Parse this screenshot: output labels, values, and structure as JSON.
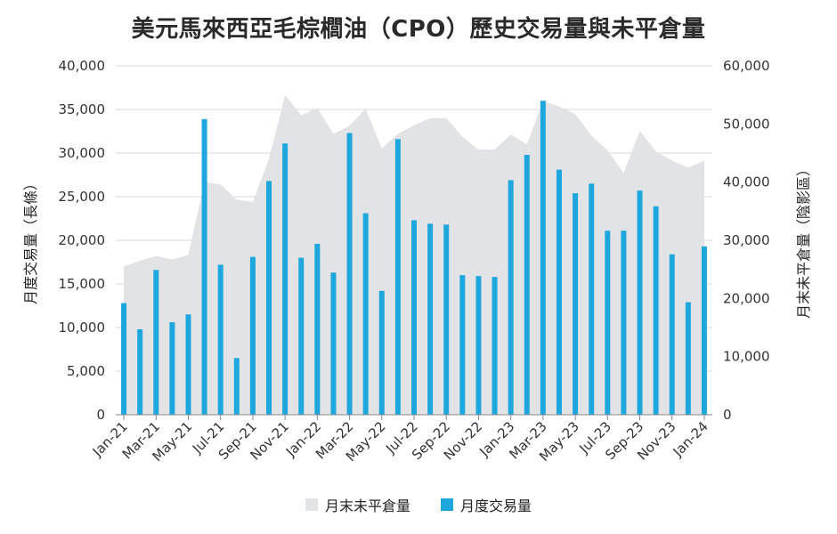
{
  "title": "美元馬來西亞毛棕櫚油（CPO）歷史交易量與未平倉量",
  "chart_data": {
    "type": "bar",
    "title": "美元馬來西亞毛棕櫚油（CPO）歷史交易量與未平倉量",
    "y_left_label": "月度交易量（長條）",
    "y_right_label": "月末未平倉量（陰影區）",
    "y_left_lim": [
      0,
      40000
    ],
    "y_right_lim": [
      0,
      60000
    ],
    "y_left_ticks": [
      "0",
      "5,000",
      "10,000",
      "15,000",
      "20,000",
      "25,000",
      "30,000",
      "35,000",
      "40,000"
    ],
    "y_right_ticks": [
      "0",
      "10,000",
      "20,000",
      "30,000",
      "40,000",
      "50,000",
      "60,000"
    ],
    "grid": true,
    "legend_position": "bottom",
    "x_tick_labels": [
      "Jan-21",
      "Mar-21",
      "May-21",
      "Jul-21",
      "Sep-21",
      "Nov-21",
      "Jan-22",
      "Mar-22",
      "May-22",
      "Jul-22",
      "Sep-22",
      "Nov-22",
      "Jan-23",
      "Mar-23",
      "May-23",
      "Jul-23",
      "Sep-23",
      "Nov-23",
      "Jan-24"
    ],
    "categories": [
      "Jan-21",
      "Feb-21",
      "Mar-21",
      "Apr-21",
      "May-21",
      "Jun-21",
      "Jul-21",
      "Aug-21",
      "Sep-21",
      "Oct-21",
      "Nov-21",
      "Dec-21",
      "Jan-22",
      "Feb-22",
      "Mar-22",
      "Apr-22",
      "May-22",
      "Jun-22",
      "Jul-22",
      "Aug-22",
      "Sep-22",
      "Oct-22",
      "Nov-22",
      "Dec-22",
      "Jan-23",
      "Feb-23",
      "Mar-23",
      "Apr-23",
      "May-23",
      "Jun-23",
      "Jul-23",
      "Aug-23",
      "Sep-23",
      "Oct-23",
      "Nov-23",
      "Dec-23",
      "Jan-24"
    ],
    "series": [
      {
        "name": "月末未平倉量",
        "type": "area",
        "axis": "right",
        "color": "#e2e3e5",
        "values": [
          25500,
          26500,
          27300,
          26700,
          27500,
          40000,
          39600,
          37000,
          36600,
          44000,
          55000,
          51500,
          52800,
          48300,
          49700,
          52600,
          45800,
          48300,
          49800,
          51000,
          51000,
          47800,
          45600,
          45600,
          48200,
          46500,
          54000,
          53000,
          51700,
          48000,
          45500,
          41600,
          48800,
          45300,
          43700,
          42500,
          43700
        ]
      },
      {
        "name": "月度交易量",
        "type": "bar",
        "axis": "left",
        "color": "#1ea7dc",
        "values": [
          12800,
          9800,
          16600,
          10600,
          11500,
          33900,
          17200,
          6500,
          18100,
          26800,
          31100,
          18000,
          19600,
          16300,
          32300,
          23100,
          14200,
          31600,
          22300,
          21900,
          21800,
          16000,
          15900,
          15800,
          26900,
          29800,
          36000,
          28100,
          25400,
          26500,
          21100,
          21100,
          25700,
          23900,
          18400,
          12900,
          19300
        ]
      }
    ]
  }
}
